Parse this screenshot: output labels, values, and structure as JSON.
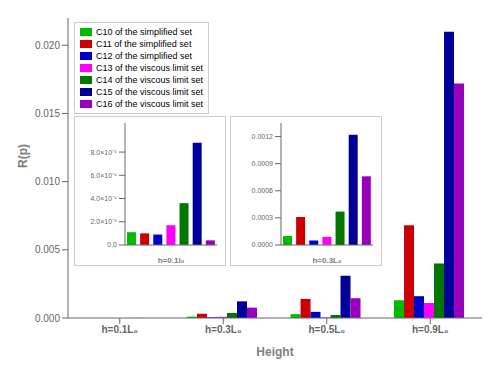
{
  "chart_data": [
    {
      "type": "bar",
      "categories": [
        "h=0.1L₀",
        "h=0.3L₀",
        "h=0.5L₀",
        "h=0.9L₀"
      ],
      "series": [
        {
          "name": "C10 of the simplified set",
          "color": "#00bb00",
          "values": [
            1.1e-06,
            0.0001,
            0.00028,
            0.0013
          ]
        },
        {
          "name": "C11 of the simplified set",
          "color": "#cc0000",
          "values": [
            1e-06,
            0.00031,
            0.0014,
            0.0068
          ]
        },
        {
          "name": "C12 of the simplified set",
          "color": "#0000cc",
          "values": [
            9e-07,
            5e-05,
            0.00045,
            0.0016
          ]
        },
        {
          "name": "C13 of the viscous limit set",
          "color": "#ff00ff",
          "values": [
            1.7e-06,
            9e-05,
            5e-05,
            0.0011
          ]
        },
        {
          "name": "C14 of the viscous limit set",
          "color": "#007700",
          "values": [
            3.6e-06,
            0.00037,
            0.00022,
            0.004
          ]
        },
        {
          "name": "C15 of the viscous limit set",
          "color": "#000099",
          "values": [
            8.8e-06,
            0.00122,
            0.0031,
            0.021
          ]
        },
        {
          "name": "C16 of the viscous limit set",
          "color": "#9900bb",
          "values": [
            4e-07,
            0.00076,
            0.00145,
            0.0172
          ]
        }
      ],
      "xlabel": "Height",
      "ylabel": "R(p)",
      "ylim": [
        0,
        0.022
      ],
      "yticks": [
        {
          "value": 0,
          "label": "0.000"
        },
        0.005,
        {
          "value": 0.01,
          "label": "0.010"
        },
        0.015,
        {
          "value": 0.02,
          "label": "0.020"
        }
      ],
      "legend": "upper left",
      "grid": false
    },
    {
      "type": "bar",
      "xlabel": "h=0.1l₀",
      "values": [
        1.1e-06,
        1e-06,
        9e-07,
        1.7e-06,
        3.6e-06,
        8.8e-06,
        4e-07
      ],
      "colors": [
        "#00bb00",
        "#cc0000",
        "#0000cc",
        "#ff00ff",
        "#007700",
        "#000099",
        "#9900bb"
      ],
      "ylim": [
        0.0,
        1.05e-05
      ],
      "yticks": [
        {
          "value": 0,
          "label": "0.0"
        },
        {
          "value": 2e-06,
          "label": "2.0×10⁻⁶"
        },
        {
          "value": 4e-06,
          "label": "4.0×10⁻⁶"
        },
        {
          "value": 6e-06,
          "label": "6.0×10⁻⁶"
        },
        {
          "value": 8e-06,
          "label": "8.0×10⁻⁶"
        }
      ],
      "tick_labels": "y"
    },
    {
      "type": "bar",
      "xlabel": "h=0.3L₀",
      "values": [
        0.0001,
        0.00031,
        5e-05,
        9e-05,
        0.00037,
        0.00122,
        0.00076
      ],
      "colors": [
        "#00bb00",
        "#cc0000",
        "#0000cc",
        "#ff00ff",
        "#007700",
        "#000099",
        "#9900bb"
      ],
      "ylim": [
        0.0,
        0.00135
      ],
      "yticks": [
        {
          "value": 0,
          "label": "0.0000"
        },
        0.0003,
        0.0006,
        0.0009,
        0.0012
      ],
      "tick_labels": "y"
    }
  ]
}
